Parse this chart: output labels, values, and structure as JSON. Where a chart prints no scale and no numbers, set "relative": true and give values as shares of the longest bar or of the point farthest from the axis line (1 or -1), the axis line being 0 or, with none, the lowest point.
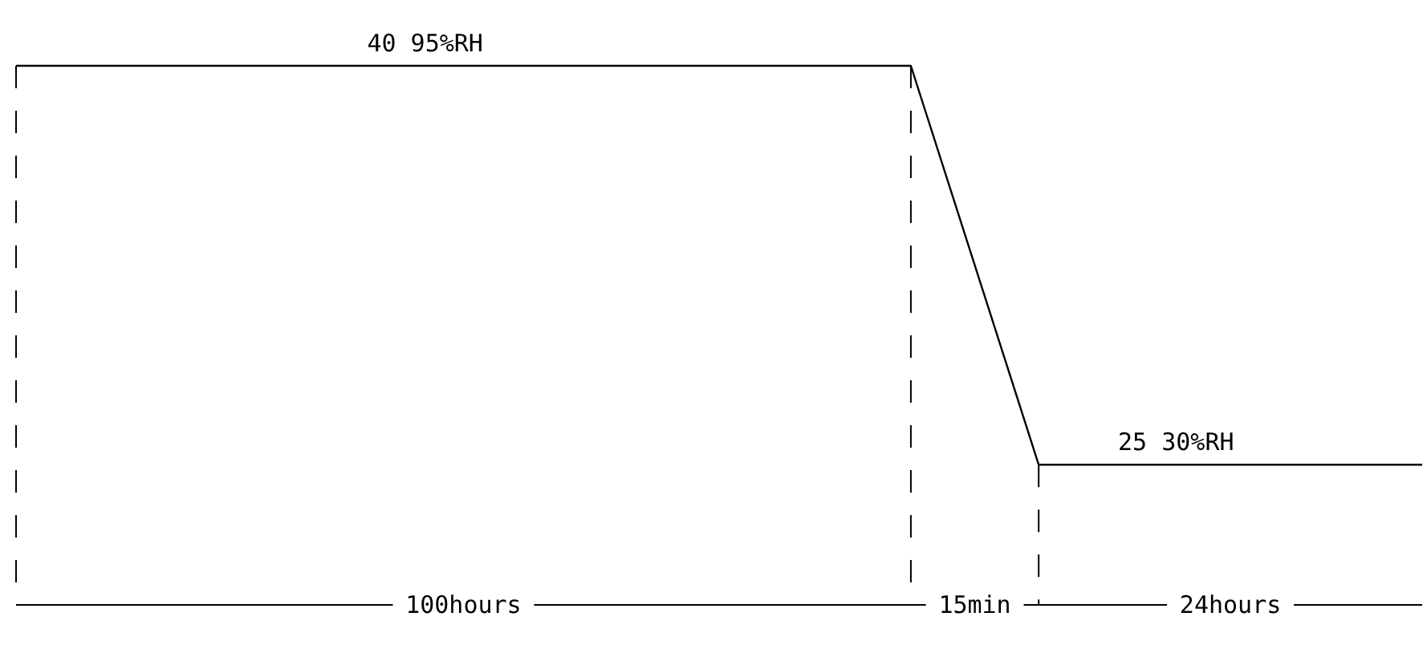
{
  "chart_data": {
    "type": "line",
    "relative": true,
    "categories": [
      null,
      null,
      null,
      null,
      null,
      null,
      null,
      null,
      null,
      null,
      null,
      null
    ],
    "series": [
      {
        "color": "#000000",
        "values": [
          1,
          1,
          1,
          1,
          1,
          1,
          1,
          1,
          0.26,
          0.26,
          0.26,
          0.26
        ]
      }
    ],
    "line_style": "solid",
    "annotations": [
      {
        "text": "40   95%RH",
        "y": 1
      },
      {
        "text": "25   30%RH",
        "y": 0.26
      },
      "100hours",
      "15min",
      "24hours"
    ]
  }
}
